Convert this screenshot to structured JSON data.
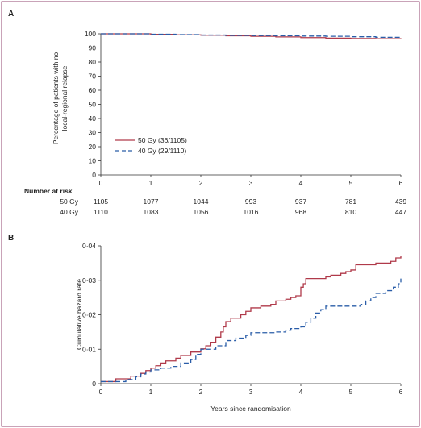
{
  "colors": {
    "gy50": "#b03a4a",
    "gy40": "#2a5da8",
    "axis": "#333333"
  },
  "chart_data": [
    {
      "panel": "A",
      "type": "line",
      "title": "",
      "xlabel": "",
      "ylabel_lines": [
        "Percentage of patients with no",
        "local-regional relapse"
      ],
      "xlim": [
        0,
        6
      ],
      "ylim": [
        0,
        100
      ],
      "x_ticks": [
        "0",
        "1",
        "2",
        "3",
        "4",
        "5",
        "6"
      ],
      "y_ticks": [
        "0",
        "10",
        "20",
        "30",
        "40",
        "50",
        "60",
        "70",
        "80",
        "90",
        "100"
      ],
      "legend": [
        "50 Gy (36/1105)",
        "40 Gy (29/1110)"
      ],
      "legend_position": "bottom-left",
      "series": [
        {
          "name": "50 Gy (36/1105)",
          "style": "solid",
          "x": [
            0,
            0.5,
            1.0,
            1.5,
            2.0,
            2.5,
            3.0,
            3.5,
            4.0,
            4.5,
            5.0,
            5.5,
            6.0
          ],
          "y": [
            100,
            100,
            99.6,
            99.3,
            99.0,
            98.6,
            98.2,
            97.8,
            97.3,
            96.9,
            96.6,
            96.5,
            96.4
          ]
        },
        {
          "name": "40 Gy (29/1110)",
          "style": "dashed",
          "x": [
            0,
            0.5,
            1.0,
            1.5,
            2.0,
            2.5,
            3.0,
            3.5,
            4.0,
            4.5,
            5.0,
            5.5,
            6.0
          ],
          "y": [
            100,
            100,
            99.7,
            99.4,
            99.1,
            98.9,
            98.7,
            98.6,
            98.4,
            98.2,
            97.9,
            97.5,
            97.3
          ]
        }
      ],
      "number_at_risk": {
        "header": "Number at risk",
        "rows": [
          {
            "label": "50 Gy",
            "values": [
              "1105",
              "1077",
              "1044",
              "993",
              "937",
              "781",
              "439"
            ]
          },
          {
            "label": "40 Gy",
            "values": [
              "1110",
              "1083",
              "1056",
              "1016",
              "968",
              "810",
              "447"
            ]
          }
        ]
      }
    },
    {
      "panel": "B",
      "type": "line",
      "title": "",
      "xlabel": "Years since randomisation",
      "ylabel": "Cumulative hazard rate",
      "xlim": [
        0,
        6
      ],
      "ylim": [
        0,
        0.04
      ],
      "x_ticks": [
        "0",
        "1",
        "2",
        "3",
        "4",
        "5",
        "6"
      ],
      "y_ticks": [
        "0",
        "0·01",
        "0·02",
        "0·03",
        "0·04"
      ],
      "series": [
        {
          "name": "50 Gy",
          "style": "solid",
          "x": [
            0,
            0.3,
            0.6,
            0.8,
            0.9,
            1.0,
            1.1,
            1.2,
            1.3,
            1.5,
            1.6,
            1.8,
            2.0,
            2.1,
            2.2,
            2.3,
            2.4,
            2.45,
            2.5,
            2.6,
            2.8,
            2.9,
            3.0,
            3.2,
            3.4,
            3.5,
            3.7,
            3.8,
            3.9,
            4.0,
            4.05,
            4.1,
            4.5,
            4.6,
            4.8,
            4.9,
            5.0,
            5.1,
            5.5,
            5.8,
            5.9,
            6.0
          ],
          "y": [
            0.0006,
            0.0014,
            0.0022,
            0.003,
            0.0038,
            0.0045,
            0.0052,
            0.006,
            0.0066,
            0.0074,
            0.0082,
            0.0092,
            0.0101,
            0.011,
            0.012,
            0.0135,
            0.015,
            0.0165,
            0.018,
            0.019,
            0.02,
            0.021,
            0.022,
            0.0225,
            0.023,
            0.024,
            0.0245,
            0.025,
            0.0255,
            0.028,
            0.029,
            0.0305,
            0.031,
            0.0315,
            0.032,
            0.0325,
            0.033,
            0.0345,
            0.035,
            0.0355,
            0.0365,
            0.0372
          ]
        },
        {
          "name": "40 Gy",
          "style": "dashed",
          "x": [
            0,
            0.3,
            0.5,
            0.7,
            0.8,
            0.9,
            1.0,
            1.2,
            1.4,
            1.6,
            1.8,
            1.9,
            2.0,
            2.3,
            2.5,
            2.7,
            2.9,
            3.0,
            3.5,
            3.7,
            3.8,
            4.0,
            4.1,
            4.2,
            4.3,
            4.4,
            4.5,
            5.0,
            5.2,
            5.3,
            5.4,
            5.5,
            5.7,
            5.85,
            5.95,
            6.0
          ],
          "y": [
            0.0006,
            0.0006,
            0.0012,
            0.002,
            0.0028,
            0.0034,
            0.004,
            0.0045,
            0.005,
            0.006,
            0.007,
            0.0085,
            0.01,
            0.011,
            0.0125,
            0.0132,
            0.014,
            0.0148,
            0.015,
            0.0155,
            0.016,
            0.0165,
            0.0178,
            0.019,
            0.0205,
            0.0215,
            0.0225,
            0.0225,
            0.023,
            0.024,
            0.025,
            0.0262,
            0.027,
            0.028,
            0.029,
            0.0305
          ]
        }
      ]
    }
  ]
}
